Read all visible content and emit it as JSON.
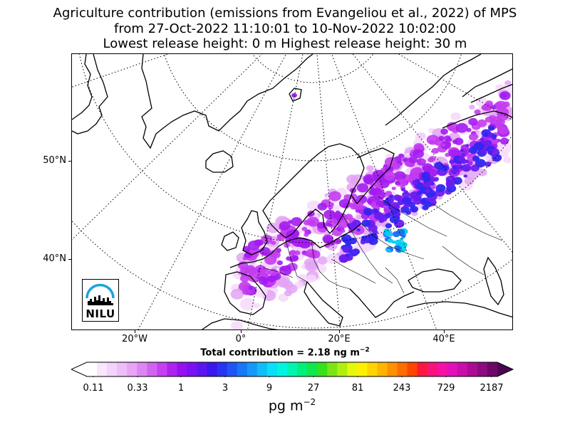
{
  "title": {
    "line1": "Agriculture contribution (emissions from Evangeliou et al., 2022) of MPS",
    "line2": "from 27-Oct-2022 11:10:01 to 10-Nov-2022 10:02:00",
    "line3": "Lowest release height: 0 m      Highest release height: 30 m"
  },
  "map": {
    "projection": "polar stereographic (Arctic-centred)",
    "lat_labels": [
      "50°N",
      "40°N"
    ],
    "lon_labels": [
      "20°W",
      "0°",
      "20°E",
      "40°E"
    ],
    "graticule": "dotted",
    "land_fill": "none",
    "plume_colors": [
      "#f6d9fb",
      "#e3a3f4",
      "#c33cf0",
      "#a31cf0",
      "#6a1cf0",
      "#3326f0",
      "#1a6cf0",
      "#00d0f0"
    ]
  },
  "logo": {
    "text": "NILU",
    "color": "#1aa3e0"
  },
  "total": {
    "prefix": "Total contribution = 2.18 ng m",
    "exponent": "−2"
  },
  "colorbar": {
    "tick_labels": [
      "0.11",
      "0.33",
      "1",
      "3",
      "9",
      "27",
      "81",
      "243",
      "729",
      "2187"
    ],
    "colors": [
      "#ffffff",
      "#f8e6fc",
      "#f4d2fb",
      "#eebdf8",
      "#e7a4f5",
      "#dd86f3",
      "#d263f1",
      "#c540f0",
      "#b022f0",
      "#9511f2",
      "#7a10f3",
      "#5d14f2",
      "#3a17ef",
      "#2a33f3",
      "#1f55f5",
      "#1876f7",
      "#1499f8",
      "#0fbdf9",
      "#08dff8",
      "#00f5e0",
      "#00f5b0",
      "#00f07a",
      "#10e84a",
      "#38e11c",
      "#7be514",
      "#b0ee10",
      "#e5f80c",
      "#fff000",
      "#ffd400",
      "#ffb400",
      "#ff9000",
      "#ff6c00",
      "#ff4400",
      "#fb1840",
      "#f8127a",
      "#f510a8",
      "#e30fb8",
      "#c90eaa",
      "#ab0c95",
      "#8d0a80",
      "#6e0868"
    ],
    "units_prefix": "pg m",
    "units_exponent": "−2"
  }
}
